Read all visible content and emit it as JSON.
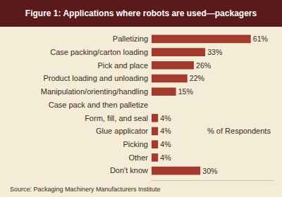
{
  "chart_data": {
    "type": "bar",
    "orientation": "horizontal",
    "title": "Figure 1: Applications where robots are used—packagers",
    "categories": [
      "Palletizing",
      "Case packing/carton loading",
      "Pick and place",
      "Product loading and unloading",
      "Manipulation/orienting/handling",
      "Case pack and then palletize",
      "Form, fill, and seal",
      "Glue applicator",
      "Picking",
      "Other",
      "Don't know"
    ],
    "values": [
      61,
      33,
      26,
      22,
      15,
      null,
      4,
      4,
      4,
      4,
      30
    ],
    "value_labels": [
      "61%",
      "33%",
      "26%",
      "22%",
      "15%",
      null,
      "4%",
      "4%",
      "4%",
      "4%",
      "30%"
    ],
    "color": "#a33a2f",
    "xlim": [
      0,
      75
    ],
    "grid": false,
    "data_labels": true,
    "tick_labels": "y",
    "annotations": [
      "% of Respondents"
    ],
    "source": "Source: Packaging Machinery Manufacturers Institute"
  }
}
